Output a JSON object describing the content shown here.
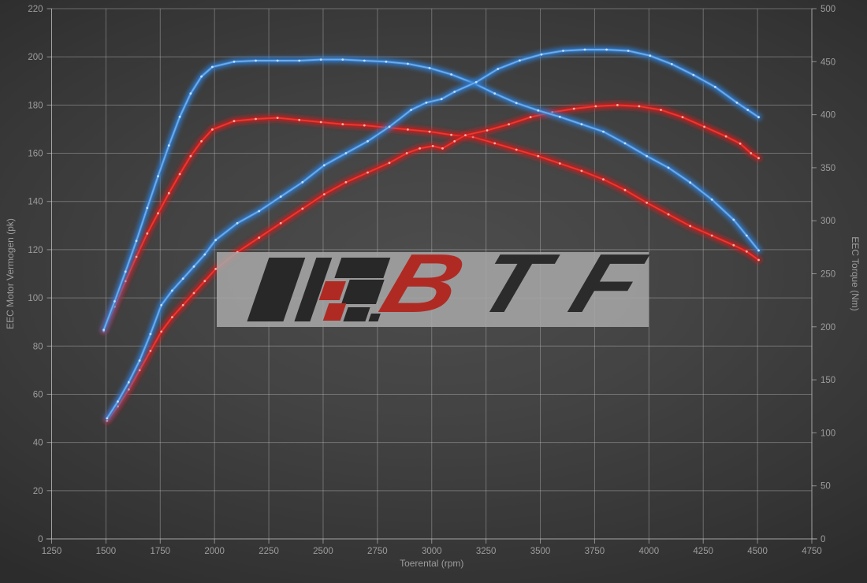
{
  "watermark": {
    "letters": [
      "B",
      "T",
      "F"
    ],
    "bar_color": "#a8a8a8",
    "dark_color": "#282828",
    "red_color": "#b02a24"
  },
  "colors": {
    "background_center": "#4d4d4d",
    "background_edge": "#2c2c2c",
    "grid": "#bdbdbd",
    "axis": "#c9c9c9",
    "tick_text": "#9c9c9c"
  },
  "chart_data": {
    "type": "line",
    "title": "",
    "xlabel": "Toerental (rpm)",
    "ylabel_left": "EEC Motor Vermogen (pk)",
    "ylabel_right": "EEC Torque (Nm)",
    "x_range": [
      1250,
      4750
    ],
    "y_left_range": [
      0,
      220
    ],
    "y_right_range": [
      0,
      500
    ],
    "grid": true,
    "legend": "none",
    "x_ticks": [
      1250,
      1500,
      1750,
      2000,
      2250,
      2500,
      2750,
      3000,
      3250,
      3500,
      3750,
      4000,
      4250,
      4500,
      4750
    ],
    "y_left_ticks": [
      0,
      20,
      40,
      60,
      80,
      100,
      120,
      140,
      160,
      180,
      200,
      220
    ],
    "y_right_ticks": [
      0,
      50,
      100,
      150,
      200,
      250,
      300,
      350,
      400,
      450,
      500
    ],
    "series": [
      {
        "id": "torque-stock-red",
        "axis": "right",
        "unit": "Nm",
        "glow_color": "#c61d1d",
        "core_color": "#e63a33",
        "marker_color": "#ffb3ab",
        "points": [
          [
            1490,
            196
          ],
          [
            1540,
            219
          ],
          [
            1590,
            243
          ],
          [
            1640,
            266
          ],
          [
            1690,
            288
          ],
          [
            1740,
            307
          ],
          [
            1790,
            326
          ],
          [
            1840,
            344
          ],
          [
            1890,
            361
          ],
          [
            1940,
            375
          ],
          [
            1990,
            386
          ],
          [
            2090,
            394
          ],
          [
            2190,
            396
          ],
          [
            2290,
            397
          ],
          [
            2390,
            395
          ],
          [
            2490,
            393
          ],
          [
            2590,
            391
          ],
          [
            2690,
            390
          ],
          [
            2790,
            388
          ],
          [
            2890,
            386
          ],
          [
            2990,
            384
          ],
          [
            3090,
            381
          ],
          [
            3190,
            379
          ],
          [
            3290,
            373
          ],
          [
            3390,
            367
          ],
          [
            3490,
            361
          ],
          [
            3590,
            354
          ],
          [
            3690,
            347
          ],
          [
            3790,
            339
          ],
          [
            3890,
            329
          ],
          [
            3990,
            317
          ],
          [
            4090,
            306
          ],
          [
            4190,
            295
          ],
          [
            4290,
            286
          ],
          [
            4390,
            277
          ],
          [
            4450,
            271
          ],
          [
            4505,
            263
          ]
        ]
      },
      {
        "id": "power-stock-red",
        "axis": "left",
        "unit": "pk",
        "glow_color": "#c61d1d",
        "core_color": "#e63a33",
        "marker_color": "#ffb3ab",
        "points": [
          [
            1505,
            49
          ],
          [
            1555,
            55
          ],
          [
            1605,
            62
          ],
          [
            1655,
            70
          ],
          [
            1705,
            78
          ],
          [
            1755,
            86
          ],
          [
            1805,
            92
          ],
          [
            1855,
            97
          ],
          [
            1905,
            102
          ],
          [
            1955,
            107
          ],
          [
            2005,
            112
          ],
          [
            2105,
            119
          ],
          [
            2205,
            125
          ],
          [
            2305,
            131
          ],
          [
            2405,
            137
          ],
          [
            2505,
            143
          ],
          [
            2605,
            148
          ],
          [
            2705,
            152
          ],
          [
            2805,
            156
          ],
          [
            2885,
            160
          ],
          [
            2945,
            162
          ],
          [
            3005,
            163
          ],
          [
            3050,
            162
          ],
          [
            3105,
            165
          ],
          [
            3155,
            167.5
          ],
          [
            3255,
            169.5
          ],
          [
            3355,
            172
          ],
          [
            3455,
            175
          ],
          [
            3555,
            177
          ],
          [
            3655,
            178.5
          ],
          [
            3755,
            179.5
          ],
          [
            3855,
            180
          ],
          [
            3955,
            179.5
          ],
          [
            4055,
            178
          ],
          [
            4155,
            175
          ],
          [
            4255,
            171
          ],
          [
            4355,
            167
          ],
          [
            4420,
            164
          ],
          [
            4470,
            160
          ],
          [
            4505,
            158
          ]
        ]
      },
      {
        "id": "torque-tuned-blue",
        "axis": "right",
        "unit": "Nm",
        "glow_color": "#2d7dd2",
        "core_color": "#70aae6",
        "marker_color": "#c8e2fa",
        "points": [
          [
            1490,
            197
          ],
          [
            1540,
            224
          ],
          [
            1590,
            252
          ],
          [
            1640,
            281
          ],
          [
            1690,
            312
          ],
          [
            1740,
            342
          ],
          [
            1790,
            371
          ],
          [
            1840,
            398
          ],
          [
            1890,
            420
          ],
          [
            1940,
            436
          ],
          [
            1990,
            445
          ],
          [
            2090,
            450
          ],
          [
            2190,
            451
          ],
          [
            2290,
            451
          ],
          [
            2390,
            451
          ],
          [
            2490,
            452
          ],
          [
            2590,
            452
          ],
          [
            2690,
            451
          ],
          [
            2790,
            450
          ],
          [
            2890,
            448
          ],
          [
            2990,
            444
          ],
          [
            3090,
            438
          ],
          [
            3190,
            430
          ],
          [
            3290,
            420
          ],
          [
            3390,
            411
          ],
          [
            3490,
            404
          ],
          [
            3590,
            398
          ],
          [
            3690,
            391
          ],
          [
            3790,
            384
          ],
          [
            3890,
            373
          ],
          [
            3990,
            361
          ],
          [
            4090,
            350
          ],
          [
            4190,
            336
          ],
          [
            4290,
            320
          ],
          [
            4390,
            301
          ],
          [
            4450,
            286
          ],
          [
            4505,
            272
          ]
        ]
      },
      {
        "id": "power-tuned-blue",
        "axis": "left",
        "unit": "pk",
        "glow_color": "#2d7dd2",
        "core_color": "#70aae6",
        "marker_color": "#c8e2fa",
        "points": [
          [
            1505,
            50
          ],
          [
            1555,
            57
          ],
          [
            1605,
            65
          ],
          [
            1655,
            74
          ],
          [
            1705,
            85
          ],
          [
            1755,
            97
          ],
          [
            1805,
            103
          ],
          [
            1855,
            108
          ],
          [
            1905,
            113
          ],
          [
            1955,
            118
          ],
          [
            2005,
            124
          ],
          [
            2105,
            131
          ],
          [
            2205,
            136
          ],
          [
            2305,
            142
          ],
          [
            2405,
            148
          ],
          [
            2505,
            155
          ],
          [
            2605,
            160
          ],
          [
            2705,
            165
          ],
          [
            2805,
            171
          ],
          [
            2905,
            178
          ],
          [
            2975,
            181
          ],
          [
            3045,
            182.5
          ],
          [
            3105,
            185.5
          ],
          [
            3205,
            189.5
          ],
          [
            3305,
            195
          ],
          [
            3405,
            198.5
          ],
          [
            3505,
            201
          ],
          [
            3605,
            202.5
          ],
          [
            3705,
            203
          ],
          [
            3805,
            203
          ],
          [
            3905,
            202.5
          ],
          [
            4005,
            200.5
          ],
          [
            4105,
            197
          ],
          [
            4205,
            192.5
          ],
          [
            4305,
            187.5
          ],
          [
            4405,
            181
          ],
          [
            4455,
            178
          ],
          [
            4505,
            175
          ]
        ]
      }
    ]
  }
}
